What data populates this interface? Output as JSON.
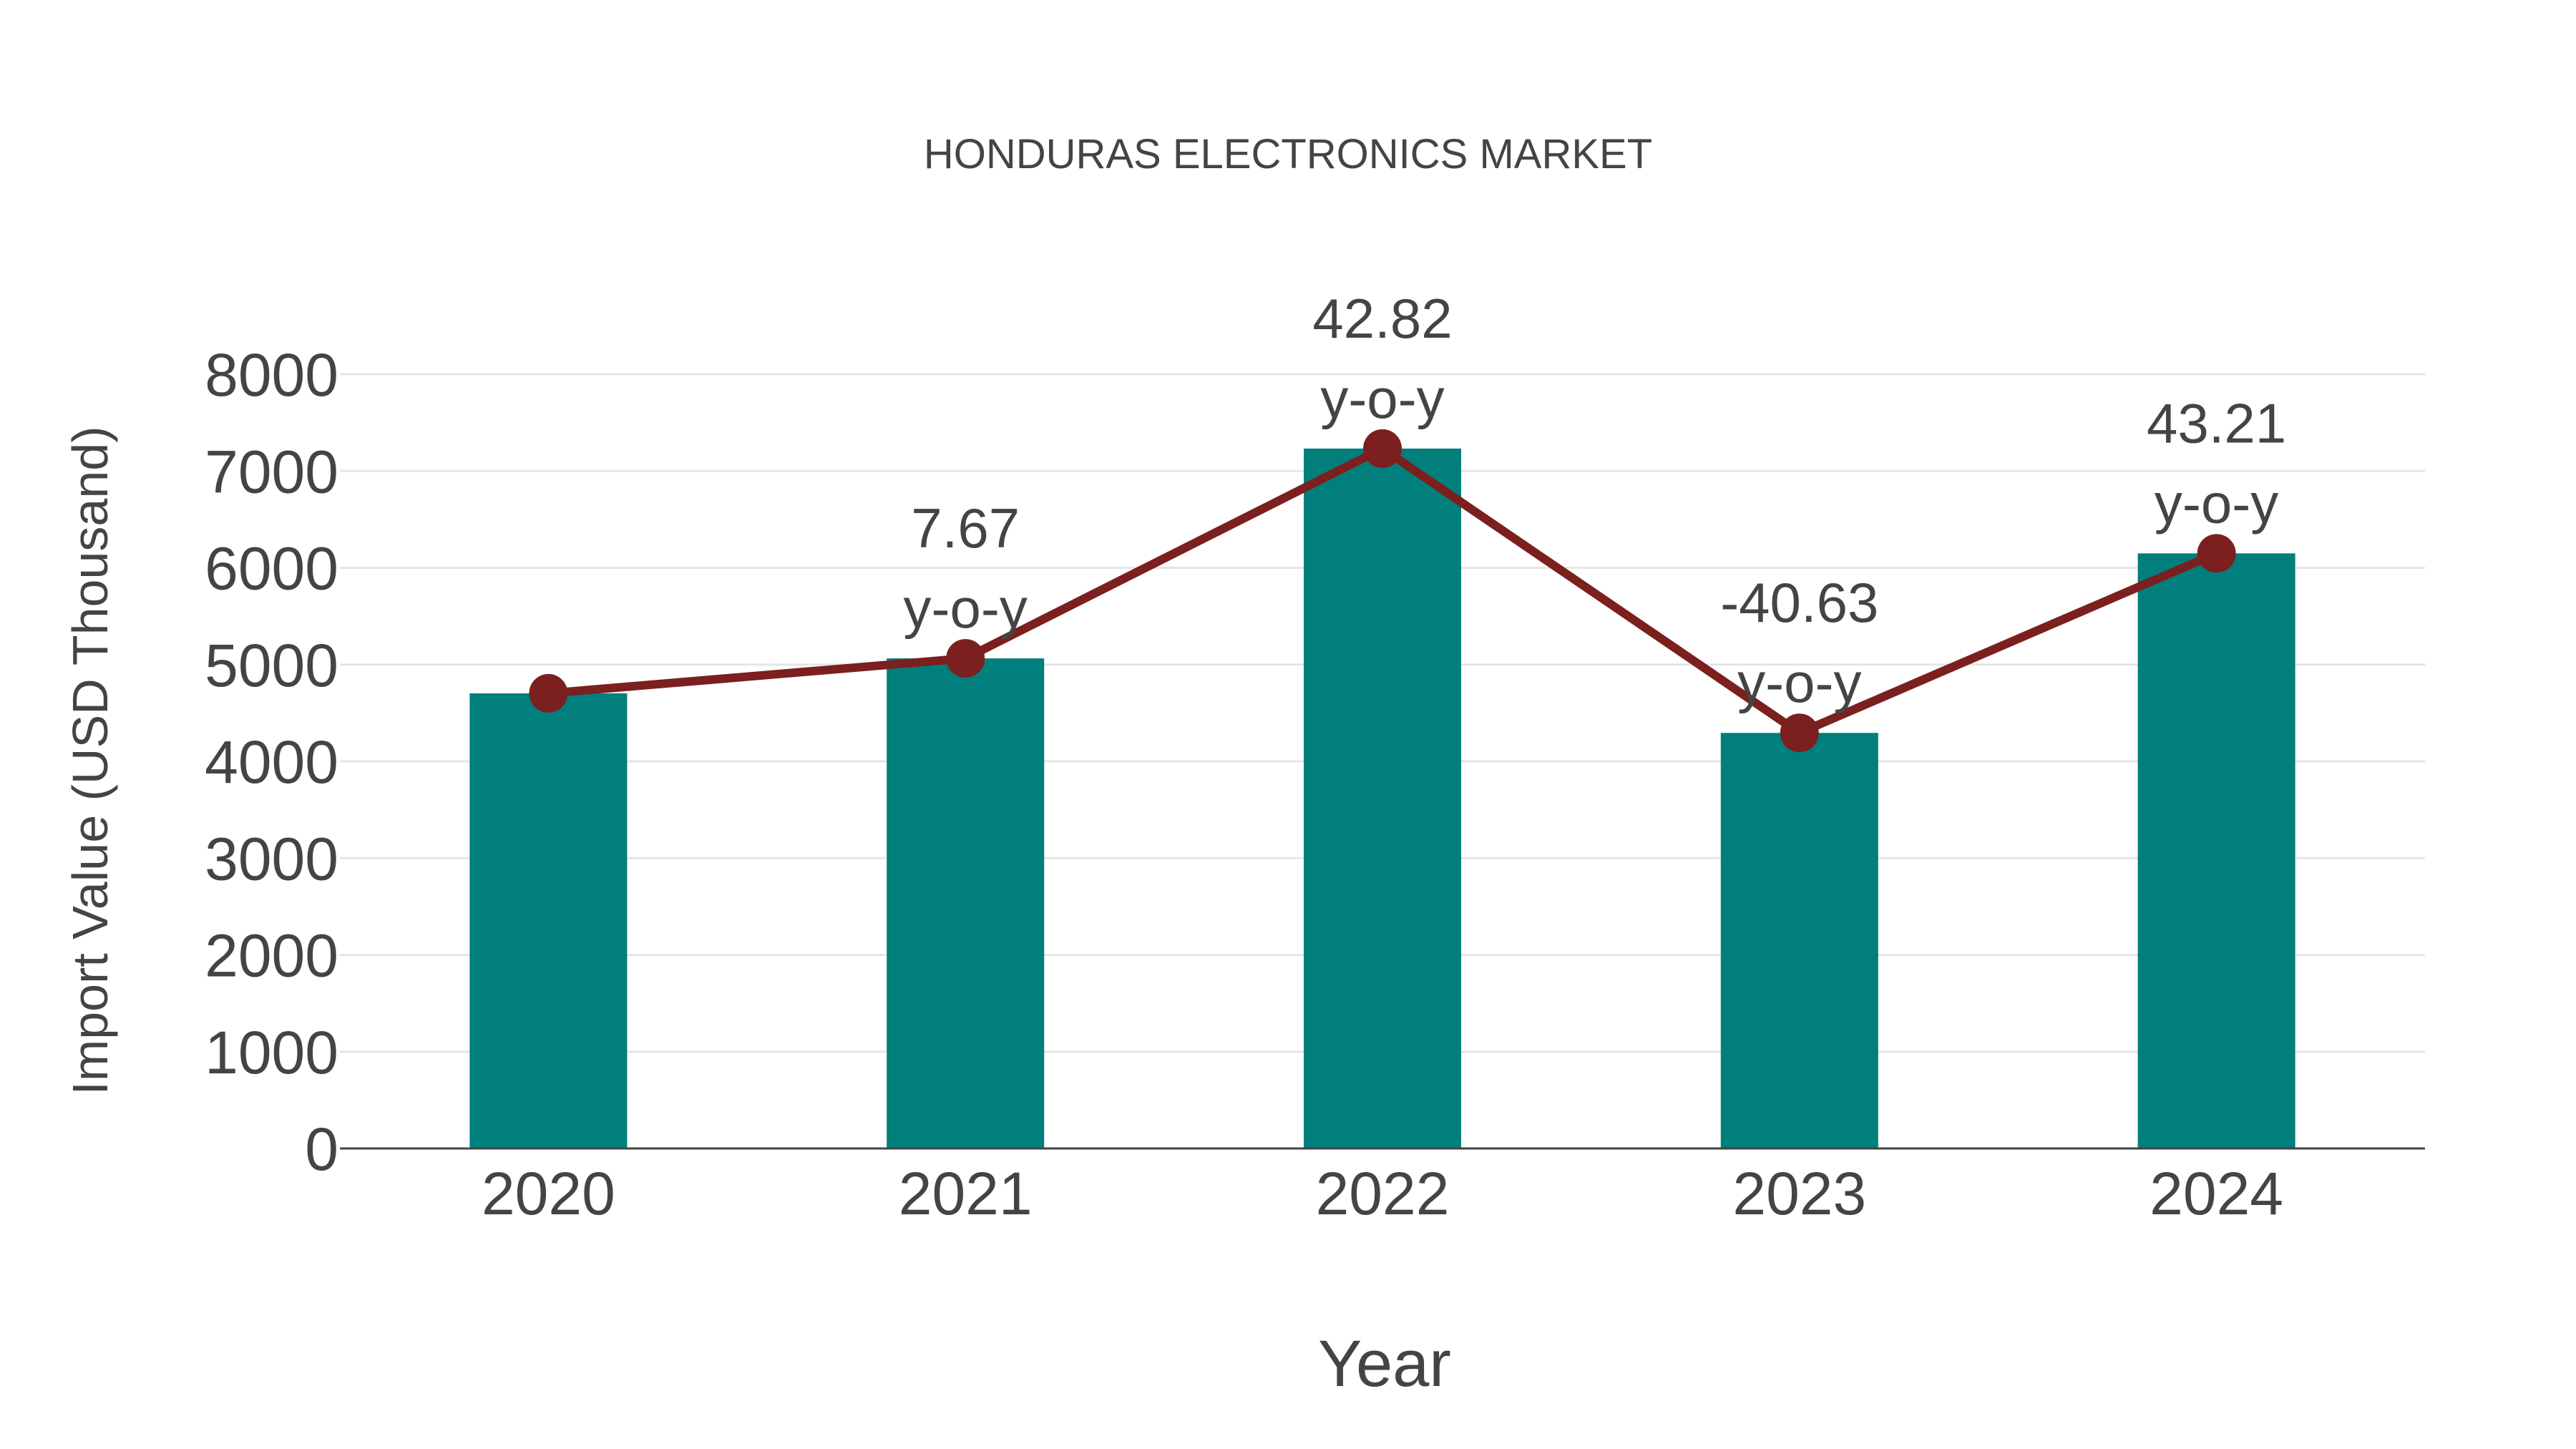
{
  "chart_data": {
    "type": "bar",
    "title": "HONDURAS ELECTRONICS MARKET",
    "xlabel": "Year",
    "ylabel": "Import Value (USD Thousand)",
    "categories": [
      "2020",
      "2021",
      "2022",
      "2023",
      "2024"
    ],
    "series": [
      {
        "name": "Import Value",
        "type": "bar",
        "color": "#007f7c",
        "values": [
          4703,
          5064,
          7232,
          4294,
          6149
        ]
      },
      {
        "name": "Import Value (line)",
        "type": "line",
        "color": "#7b1f1f",
        "values": [
          4703,
          5064,
          7232,
          4294,
          6149
        ]
      }
    ],
    "annotations": [
      {
        "category": "2021",
        "value": "7.67",
        "suffix": "y-o-y"
      },
      {
        "category": "2022",
        "value": "42.82",
        "suffix": "y-o-y"
      },
      {
        "category": "2023",
        "value": "-40.63",
        "suffix": "y-o-y"
      },
      {
        "category": "2024",
        "value": "43.21",
        "suffix": "y-o-y"
      }
    ],
    "yticks": [
      0,
      1000,
      2000,
      3000,
      4000,
      5000,
      6000,
      7000,
      8000
    ],
    "ylim": [
      0,
      8000
    ],
    "grid": true,
    "legend": false
  },
  "colors": {
    "bar": "#007f7c",
    "line": "#7b1f1f",
    "grid": "#e5e5e5",
    "axis": "#444444",
    "text": "#444444"
  }
}
